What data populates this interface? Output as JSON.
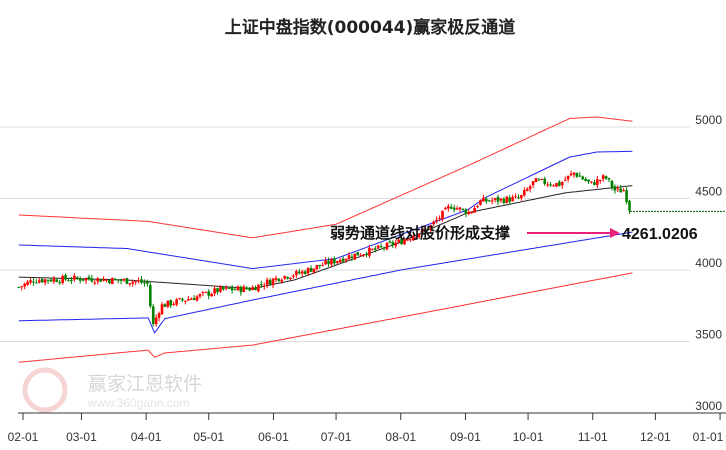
{
  "chart_data": {
    "type": "candlestick",
    "title": "上证中盘指数(000044)赢家极反通道",
    "x_ticks": [
      "02-01",
      "03-01",
      "04-01",
      "05-01",
      "06-01",
      "07-01",
      "08-01",
      "09-01",
      "10-01",
      "11-01",
      "12-01",
      "01-01"
    ],
    "x_tick_days": [
      0,
      28,
      59,
      89,
      120,
      150,
      181,
      212,
      242,
      273,
      303,
      334
    ],
    "y_ticks": [
      3000,
      3500,
      4000,
      4500,
      5000
    ],
    "ylim": [
      3000,
      5150
    ],
    "close_keypoints": [
      [
        -2,
        3880
      ],
      [
        5,
        3930
      ],
      [
        30,
        3940
      ],
      [
        55,
        3920
      ],
      [
        60,
        3900
      ],
      [
        62,
        3600
      ],
      [
        66,
        3750
      ],
      [
        85,
        3820
      ],
      [
        94,
        3860
      ],
      [
        109,
        3870
      ],
      [
        123,
        3950
      ],
      [
        133,
        3980
      ],
      [
        142,
        4030
      ],
      [
        157,
        4100
      ],
      [
        171,
        4150
      ],
      [
        181,
        4200
      ],
      [
        195,
        4300
      ],
      [
        205,
        4450
      ],
      [
        214,
        4400
      ],
      [
        219,
        4480
      ],
      [
        238,
        4500
      ],
      [
        245,
        4620
      ],
      [
        257,
        4600
      ],
      [
        264,
        4680
      ],
      [
        272,
        4600
      ],
      [
        279,
        4650
      ],
      [
        284,
        4550
      ],
      [
        288,
        4560
      ],
      [
        291,
        4410
      ]
    ],
    "channels": [
      {
        "name": "upper-red",
        "color": "#ff3333",
        "points": [
          [
            -2,
            4385
          ],
          [
            60,
            4340
          ],
          [
            110,
            4225
          ],
          [
            150,
            4320
          ],
          [
            214,
            4735
          ],
          [
            262,
            5060
          ],
          [
            275,
            5070
          ],
          [
            292,
            5040
          ]
        ]
      },
      {
        "name": "upper-blue",
        "color": "#2222ee",
        "points": [
          [
            -2,
            4175
          ],
          [
            50,
            4150
          ],
          [
            110,
            4010
          ],
          [
            150,
            4080
          ],
          [
            213,
            4420
          ],
          [
            222,
            4510
          ],
          [
            262,
            4790
          ],
          [
            275,
            4825
          ],
          [
            292,
            4830
          ]
        ]
      },
      {
        "name": "middle-black",
        "color": "#222222",
        "points": [
          [
            -2,
            3950
          ],
          [
            50,
            3930
          ],
          [
            110,
            3870
          ],
          [
            130,
            3930
          ],
          [
            180,
            4190
          ],
          [
            213,
            4400
          ],
          [
            260,
            4540
          ],
          [
            292,
            4590
          ]
        ]
      },
      {
        "name": "lower-blue",
        "color": "#2222ee",
        "points": [
          [
            -2,
            3645
          ],
          [
            60,
            3665
          ],
          [
            63,
            3560
          ],
          [
            68,
            3660
          ],
          [
            110,
            3790
          ],
          [
            181,
            4000
          ],
          [
            292,
            4265
          ]
        ]
      },
      {
        "name": "lower-red",
        "color": "#ff3333",
        "points": [
          [
            -2,
            3355
          ],
          [
            60,
            3440
          ],
          [
            63,
            3390
          ],
          [
            68,
            3420
          ],
          [
            110,
            3475
          ],
          [
            181,
            3670
          ],
          [
            292,
            3980
          ]
        ]
      }
    ],
    "last_price_line": 4410,
    "annotation": {
      "text": "弱势通道线对股价形成支撑",
      "value": "4261.0206",
      "target_value": 4261.0206
    },
    "colors": {
      "up": "#ff0000",
      "down": "#008000",
      "arrow": "#e8207a",
      "grid": "#dddddd"
    }
  },
  "watermark": {
    "brand": "赢家江恩软件",
    "url": "www.360gann.com",
    "seal": "江赢恩家"
  }
}
